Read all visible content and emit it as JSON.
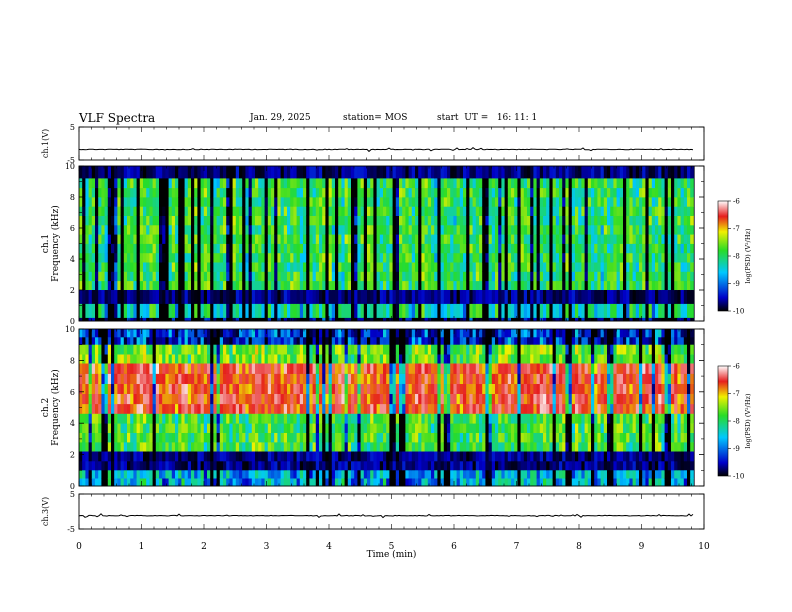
{
  "header": {
    "title": "VLF Spectra",
    "date": "Jan. 29, 2025",
    "station": "station= MOS",
    "start": "start  UT =   16: 11: 1"
  },
  "colors": {
    "background": "#ffffff",
    "axis": "#000000",
    "spectrogram_low": "#000000",
    "spectrogram_blue": "#0000c8",
    "spectrogram_cyan": "#00c8ff",
    "spectrogram_green": "#28dc28",
    "spectrogram_yellow": "#f0f000",
    "spectrogram_red": "#e61e1e"
  },
  "chart_data": [
    {
      "type": "line",
      "panel": "ch1-waveform",
      "ylabel": "ch.1(V)",
      "ylim": [
        -5,
        5
      ],
      "yticks": [
        "5",
        "-5"
      ],
      "xlim": [
        0,
        10
      ],
      "approx_level": -1.8,
      "note_series": "near-flat signal with small spikes"
    },
    {
      "type": "heatmap",
      "panel": "ch1-spectrogram",
      "ylabel_top": "ch.1",
      "ylabel": "Frequency (kHz)",
      "ylim": [
        0,
        10
      ],
      "yticks": [
        "0",
        "2",
        "4",
        "6",
        "8",
        "10"
      ],
      "xlim": [
        0,
        10
      ],
      "data_end_min": 9.85,
      "colorbar": {
        "label": "log(PSD) (V²/Hz)",
        "ticks": [
          "-6",
          "-7",
          "-8",
          "-9",
          "-10"
        ],
        "range": [
          -10,
          -6
        ]
      },
      "bands": [
        {
          "f_from": 9.2,
          "f_to": 10,
          "level": -10
        },
        {
          "f_from": 2.0,
          "f_to": 9.2,
          "level": -8.3
        },
        {
          "f_from": 1.1,
          "f_to": 2.0,
          "level": -10
        },
        {
          "f_from": 0.2,
          "f_to": 1.1,
          "level": -8.6
        },
        {
          "f_from": 0.0,
          "f_to": 0.2,
          "level": -9.8
        }
      ]
    },
    {
      "type": "heatmap",
      "panel": "ch2-spectrogram",
      "ylabel_top": "ch.2",
      "ylabel": "Frequency (kHz)",
      "ylim": [
        0,
        10
      ],
      "yticks": [
        "0",
        "2",
        "4",
        "6",
        "8",
        "10"
      ],
      "xlim": [
        0,
        10
      ],
      "data_end_min": 9.85,
      "colorbar": {
        "label": "log(PSD) (V²/Hz)",
        "ticks": [
          "-6",
          "-7",
          "-8",
          "-9",
          "-10"
        ],
        "range": [
          -10,
          -6
        ]
      },
      "bands": [
        {
          "f_from": 9.0,
          "f_to": 10,
          "level": -9.4
        },
        {
          "f_from": 7.8,
          "f_to": 9.0,
          "level": -8.0
        },
        {
          "f_from": 4.6,
          "f_to": 7.8,
          "level": -6.8
        },
        {
          "f_from": 2.2,
          "f_to": 4.6,
          "level": -8.2
        },
        {
          "f_from": 1.0,
          "f_to": 2.2,
          "level": -10
        },
        {
          "f_from": 0.0,
          "f_to": 1.0,
          "level": -8.9
        }
      ]
    },
    {
      "type": "line",
      "panel": "ch3-waveform",
      "ylabel": "ch.3(V)",
      "ylim": [
        -5,
        5
      ],
      "yticks": [
        "5",
        "-5"
      ],
      "xlim": [
        0,
        10
      ],
      "approx_level": -1.2,
      "note_series": "near-flat signal with small spikes"
    }
  ],
  "xaxis": {
    "label": "Time (min)",
    "ticks": [
      "0",
      "1",
      "2",
      "3",
      "4",
      "5",
      "6",
      "7",
      "8",
      "9",
      "10"
    ]
  }
}
